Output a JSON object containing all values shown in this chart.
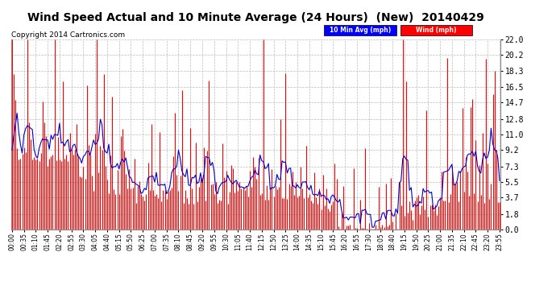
{
  "title": "Wind Speed Actual and 10 Minute Average (24 Hours)  (New)  20140429",
  "copyright": "Copyright 2014 Cartronics.com",
  "yticks": [
    0.0,
    1.8,
    3.7,
    5.5,
    7.3,
    9.2,
    11.0,
    12.8,
    14.7,
    16.5,
    18.3,
    20.2,
    22.0
  ],
  "ymax": 22.0,
  "ymin": 0.0,
  "legend_labels": [
    "10 Min Avg (mph)",
    "Wind (mph)"
  ],
  "legend_colors": [
    "#0000ff",
    "#ff0000"
  ],
  "bg_color": "#ffffff",
  "plot_bg_color": "#ffffff",
  "grid_color": "#bbbbbb",
  "title_fontsize": 10,
  "copyright_fontsize": 6.5
}
